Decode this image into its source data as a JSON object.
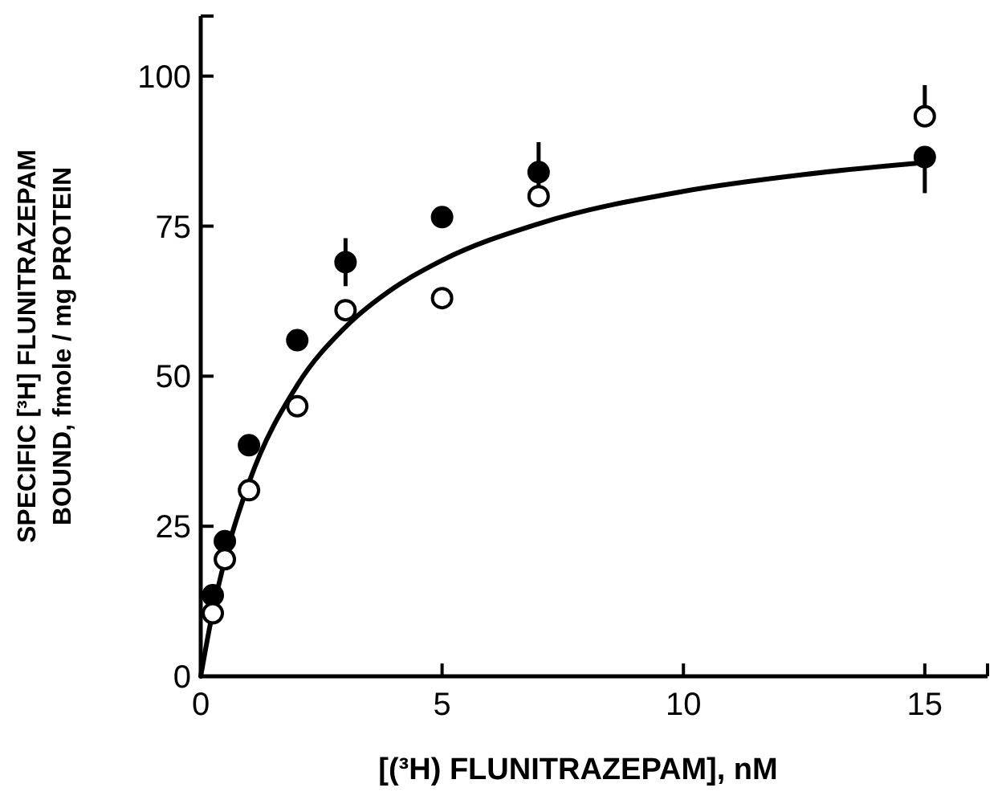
{
  "chart_data": {
    "type": "scatter",
    "xlabel": "[(³H) FLUNITRAZEPAM], nM",
    "ylabel": "SPECIFIC [³H] FLUNITRAZEPAM\nBOUND, fmole / mg PROTEIN",
    "xlim": [
      0,
      16.3
    ],
    "xticks": [
      0,
      5,
      10,
      15
    ],
    "ylim": [
      0,
      110
    ],
    "yticks": [
      0,
      25,
      50,
      75,
      100
    ],
    "grid": false,
    "series": [
      {
        "type": "line",
        "color": "#000000",
        "x": [
          0,
          0.25,
          0.5,
          1,
          2,
          3,
          4,
          5,
          7,
          10,
          12.5,
          15
        ],
        "values": [
          0,
          10.8,
          19.4,
          32.3,
          48.5,
          58.2,
          64.7,
          69.3,
          75.4,
          80.8,
          83.6,
          85.6
        ]
      },
      {
        "marker": "circle",
        "color": "#000000",
        "x": [
          0.25,
          0.5,
          1,
          2,
          3,
          5,
          7,
          15
        ],
        "values": [
          13.5,
          22.5,
          38.5,
          56,
          69,
          76.5,
          84,
          86.5
        ],
        "errors": [
          null,
          null,
          null,
          null,
          4,
          null,
          5,
          [
            80.5,
            86.5
          ]
        ]
      },
      {
        "marker": "circle",
        "color": "#ffffff",
        "x": [
          0.25,
          0.5,
          1,
          2,
          3,
          5,
          7,
          15
        ],
        "values": [
          10.5,
          19.5,
          31,
          45,
          61,
          63,
          80,
          93.3
        ],
        "errors": [
          null,
          null,
          null,
          null,
          null,
          null,
          null,
          [
            93.3,
            98.5
          ]
        ]
      }
    ]
  }
}
